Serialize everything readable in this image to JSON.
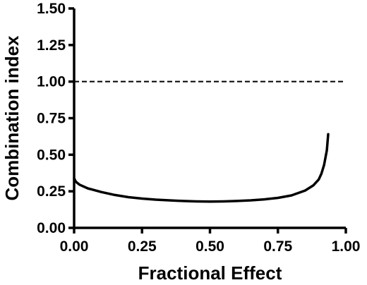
{
  "chart_data": {
    "type": "line",
    "title": "",
    "xlabel": "Fractional Effect",
    "ylabel": "Combination index",
    "xlim": [
      0,
      1
    ],
    "ylim": [
      0,
      1.5
    ],
    "x_ticks": [
      "0.00",
      "0.25",
      "0.50",
      "0.75",
      "1.00"
    ],
    "y_ticks": [
      "0.00",
      "0.25",
      "0.50",
      "0.75",
      "1.00",
      "1.25",
      "1.50"
    ],
    "grid": false,
    "reference_line": {
      "y": 1.0,
      "style": "dashed",
      "x_range": [
        0,
        1
      ]
    },
    "series": [
      {
        "x": [
          0.0,
          0.005,
          0.01,
          0.02,
          0.05,
          0.1,
          0.15,
          0.2,
          0.25,
          0.3,
          0.35,
          0.4,
          0.45,
          0.5,
          0.55,
          0.6,
          0.65,
          0.7,
          0.75,
          0.8,
          0.85,
          0.88,
          0.9,
          0.91,
          0.92,
          0.93,
          0.935
        ],
        "y": [
          0.34,
          0.32,
          0.31,
          0.295,
          0.27,
          0.245,
          0.225,
          0.21,
          0.2,
          0.193,
          0.188,
          0.184,
          0.181,
          0.18,
          0.181,
          0.184,
          0.188,
          0.195,
          0.205,
          0.222,
          0.255,
          0.29,
          0.33,
          0.37,
          0.43,
          0.53,
          0.64
        ]
      }
    ]
  }
}
